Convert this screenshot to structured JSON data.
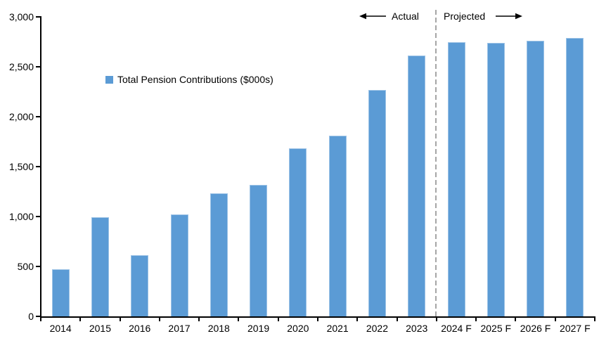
{
  "chart_data": {
    "type": "bar",
    "title": "",
    "legend": "Total Pension Contributions ($000s)",
    "categories": [
      "2014",
      "2015",
      "2016",
      "2017",
      "2018",
      "2019",
      "2020",
      "2021",
      "2022",
      "2023",
      "2024 F",
      "2025 F",
      "2026 F",
      "2027 F"
    ],
    "values": [
      470,
      990,
      610,
      1020,
      1230,
      1320,
      1680,
      1810,
      2270,
      2610,
      2750,
      2740,
      2760,
      2790
    ],
    "xlabel": "",
    "ylabel": "",
    "ylim": [
      0,
      3000
    ],
    "ytick_interval": 500,
    "ytick_labels": [
      "0",
      "500",
      "1,000",
      "1,500",
      "2,000",
      "2,500",
      "3,000"
    ],
    "grid": false,
    "legend_position": "inside-upper-left",
    "bar_color": "#5B9BD5",
    "bar_border_color": "#9DC3E6",
    "axis_color": "#000000",
    "divider": {
      "after_category": "2023",
      "style": "dashed",
      "color": "#A6A6A6"
    },
    "annotations": {
      "actual_label": "Actual",
      "projected_label": "Projected"
    }
  }
}
